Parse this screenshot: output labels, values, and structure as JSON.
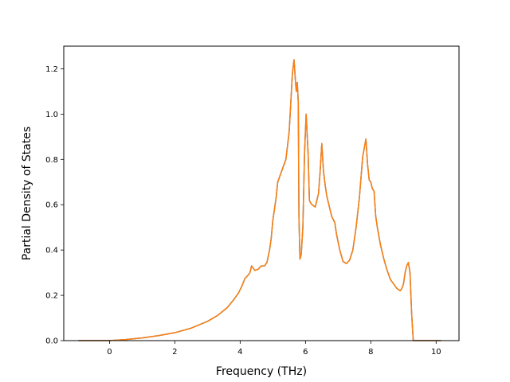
{
  "chart_data": {
    "type": "line",
    "xlabel": "Frequency (THz)",
    "ylabel": "Partial Density of States",
    "xlim": [
      -1.4,
      10.7
    ],
    "ylim": [
      0.0,
      1.3
    ],
    "xticks": [
      0,
      2,
      4,
      6,
      8,
      10
    ],
    "yticks": [
      0.0,
      0.2,
      0.4,
      0.6,
      0.8,
      1.0,
      1.2
    ],
    "xtick_labels": [
      "0",
      "2",
      "4",
      "6",
      "8",
      "10"
    ],
    "ytick_labels": [
      "0.0",
      "0.2",
      "0.4",
      "0.6",
      "0.8",
      "1.0",
      "1.2"
    ],
    "grid": false,
    "legend": "none",
    "series": [
      {
        "color": "#1f77b4",
        "x": [
          -0.95,
          -0.5,
          0.0,
          0.5,
          1.0,
          1.5,
          2.0,
          2.5,
          3.0,
          3.3,
          3.6,
          3.8,
          3.95,
          4.05,
          4.15,
          4.25,
          4.3,
          4.35,
          4.45,
          4.55,
          4.65,
          4.75,
          4.82,
          4.9,
          4.95,
          5.0,
          5.05,
          5.1,
          5.15,
          5.2,
          5.3,
          5.4,
          5.5,
          5.55,
          5.6,
          5.65,
          5.7,
          5.72,
          5.75,
          5.78,
          5.8,
          5.83,
          5.87,
          5.92,
          5.97,
          6.02,
          6.08,
          6.12,
          6.15,
          6.2,
          6.3,
          6.4,
          6.45,
          6.5,
          6.55,
          6.6,
          6.65,
          6.7,
          6.8,
          6.9,
          6.95,
          7.05,
          7.15,
          7.25,
          7.35,
          7.45,
          7.55,
          7.65,
          7.75,
          7.8,
          7.85,
          7.9,
          7.95,
          8.0,
          8.05,
          8.1,
          8.15,
          8.2,
          8.3,
          8.4,
          8.5,
          8.6,
          8.7,
          8.8,
          8.9,
          8.95,
          9.0,
          9.05,
          9.1,
          9.15,
          9.2,
          9.25,
          9.3,
          9.6,
          10.15
        ],
        "y": [
          0.0,
          0.0,
          0.0,
          0.005,
          0.012,
          0.022,
          0.035,
          0.055,
          0.085,
          0.11,
          0.145,
          0.18,
          0.21,
          0.24,
          0.275,
          0.29,
          0.3,
          0.33,
          0.31,
          0.315,
          0.33,
          0.33,
          0.345,
          0.4,
          0.45,
          0.53,
          0.58,
          0.63,
          0.7,
          0.72,
          0.76,
          0.8,
          0.92,
          1.05,
          1.18,
          1.24,
          1.13,
          1.1,
          1.14,
          1.05,
          0.55,
          0.36,
          0.38,
          0.5,
          0.82,
          1.0,
          0.83,
          0.62,
          0.61,
          0.6,
          0.59,
          0.65,
          0.75,
          0.87,
          0.75,
          0.69,
          0.64,
          0.61,
          0.55,
          0.52,
          0.47,
          0.4,
          0.35,
          0.34,
          0.355,
          0.4,
          0.5,
          0.63,
          0.81,
          0.85,
          0.89,
          0.78,
          0.71,
          0.7,
          0.67,
          0.66,
          0.55,
          0.5,
          0.42,
          0.36,
          0.31,
          0.27,
          0.25,
          0.23,
          0.22,
          0.23,
          0.25,
          0.3,
          0.33,
          0.345,
          0.3,
          0.12,
          0.0,
          0.0,
          0.0
        ]
      },
      {
        "color": "#ff7f0e",
        "x": [
          -0.95,
          -0.5,
          0.0,
          0.5,
          1.0,
          1.5,
          2.0,
          2.5,
          3.0,
          3.3,
          3.6,
          3.8,
          3.95,
          4.05,
          4.15,
          4.25,
          4.3,
          4.35,
          4.45,
          4.55,
          4.65,
          4.75,
          4.82,
          4.9,
          4.95,
          5.0,
          5.05,
          5.1,
          5.15,
          5.2,
          5.3,
          5.4,
          5.5,
          5.55,
          5.6,
          5.65,
          5.7,
          5.72,
          5.75,
          5.78,
          5.8,
          5.83,
          5.87,
          5.92,
          5.97,
          6.02,
          6.08,
          6.12,
          6.15,
          6.2,
          6.3,
          6.4,
          6.45,
          6.5,
          6.55,
          6.6,
          6.65,
          6.7,
          6.8,
          6.9,
          6.95,
          7.05,
          7.15,
          7.25,
          7.35,
          7.45,
          7.55,
          7.65,
          7.75,
          7.8,
          7.85,
          7.9,
          7.95,
          8.0,
          8.05,
          8.1,
          8.15,
          8.2,
          8.3,
          8.4,
          8.5,
          8.6,
          8.7,
          8.8,
          8.9,
          8.95,
          9.0,
          9.05,
          9.1,
          9.15,
          9.2,
          9.25,
          9.3,
          9.6,
          10.15
        ],
        "y": [
          0.0,
          0.0,
          0.0,
          0.005,
          0.012,
          0.022,
          0.035,
          0.055,
          0.085,
          0.11,
          0.145,
          0.18,
          0.21,
          0.24,
          0.275,
          0.29,
          0.3,
          0.33,
          0.31,
          0.315,
          0.33,
          0.33,
          0.345,
          0.4,
          0.45,
          0.53,
          0.58,
          0.63,
          0.7,
          0.72,
          0.76,
          0.8,
          0.92,
          1.05,
          1.18,
          1.24,
          1.13,
          1.1,
          1.14,
          1.05,
          0.55,
          0.36,
          0.38,
          0.5,
          0.82,
          1.0,
          0.83,
          0.62,
          0.61,
          0.6,
          0.59,
          0.65,
          0.75,
          0.87,
          0.75,
          0.69,
          0.64,
          0.61,
          0.55,
          0.52,
          0.47,
          0.4,
          0.35,
          0.34,
          0.355,
          0.4,
          0.5,
          0.63,
          0.81,
          0.85,
          0.89,
          0.78,
          0.71,
          0.7,
          0.67,
          0.66,
          0.55,
          0.5,
          0.42,
          0.36,
          0.31,
          0.27,
          0.25,
          0.23,
          0.22,
          0.23,
          0.25,
          0.3,
          0.33,
          0.345,
          0.3,
          0.12,
          0.0,
          0.0,
          0.0
        ]
      }
    ]
  }
}
